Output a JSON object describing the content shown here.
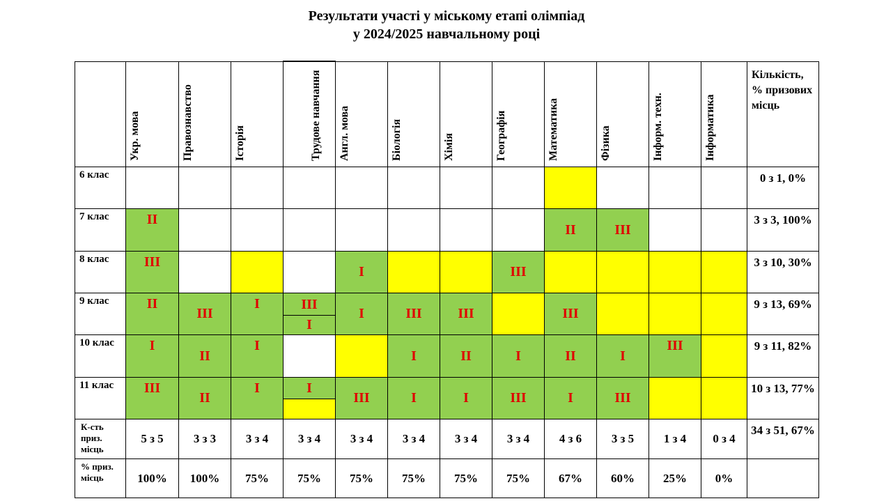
{
  "title": {
    "line1": "Результати участі у міському етапі олімпіад",
    "line2": "у 2024/2025 навчальному році"
  },
  "header": {
    "subjects": [
      "Укр. мова",
      "Правознавство",
      "Історія",
      "Трудове навчання",
      "Англ. мова",
      "Біологія",
      "Хімія",
      "Географія",
      "Математика",
      "Фізика",
      "Інформ. техн.",
      "Інформатика"
    ],
    "count_col": "Кількість, % призових місць"
  },
  "rows": [
    {
      "label": "6 клас",
      "cells": [
        "",
        "",
        "",
        "",
        "",
        "",
        "",
        "",
        "",
        "",
        "",
        ""
      ],
      "total": "0 з 1, 0%"
    },
    {
      "label": "7 клас",
      "cells": [
        "II",
        "",
        "",
        "",
        "",
        "",
        "",
        "",
        "II",
        "III",
        "",
        ""
      ],
      "total": "3 з 3, 100%"
    },
    {
      "label": "8 клас",
      "cells": [
        "III",
        "",
        "",
        "",
        "I",
        "",
        "",
        "III",
        "",
        "",
        "",
        ""
      ],
      "total": "3 з 10, 30%"
    },
    {
      "label": "9 клас",
      "cells": [
        "II",
        "III",
        "I",
        "III",
        "I",
        "III",
        "III",
        "",
        "III",
        "",
        "",
        ""
      ],
      "extra": "I",
      "total": "9 з 13, 69%"
    },
    {
      "label": "10 клас",
      "cells": [
        "I",
        "II",
        "I",
        "",
        "",
        "I",
        "II",
        "I",
        "II",
        "I",
        "III",
        ""
      ],
      "total": "9 з 11, 82%"
    },
    {
      "label": "11 клас",
      "cells": [
        "III",
        "II",
        "I",
        "I",
        "III",
        "I",
        "I",
        "III",
        "I",
        "III",
        "",
        ""
      ],
      "total": "10 з 13, 77%"
    }
  ],
  "summary": {
    "count_label": "К-сть приз. місць",
    "counts": [
      "5 з 5",
      "3 з 3",
      "3 з 4",
      "3 з 4",
      "3 з 4",
      "3 з 4",
      "3 з 4",
      "3 з 4",
      "4 з 6",
      "3 з 5",
      "1 з 4",
      "0 з 4"
    ],
    "count_total": "34 з 51, 67%",
    "pct_label": "% приз. місць",
    "pcts": [
      "100%",
      "100%",
      "75%",
      "75%",
      "75%",
      "75%",
      "75%",
      "75%",
      "67%",
      "60%",
      "25%",
      "0%"
    ]
  },
  "colors": {
    "green": "#92d050",
    "yellow": "#ffff00",
    "red_text": "#e00000"
  }
}
